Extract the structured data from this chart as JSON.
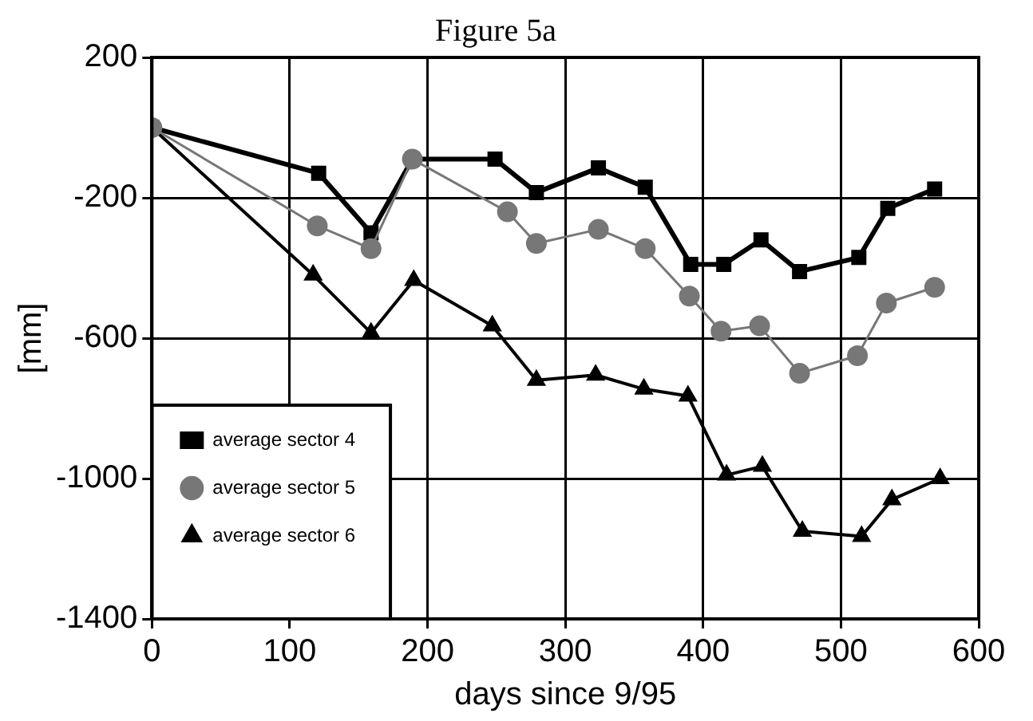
{
  "chart_data": {
    "type": "line",
    "title": "Figure 5a",
    "xlabel": "days since 9/95",
    "ylabel": "[mm]",
    "xlim": [
      0,
      600
    ],
    "xticks": [
      0,
      100,
      200,
      300,
      400,
      500,
      600
    ],
    "ylim": [
      -1400,
      200
    ],
    "yticks": [
      200,
      -200,
      -600,
      -1000,
      -1400
    ],
    "grid": true,
    "legend": "bottom left",
    "series": [
      {
        "name": "average sector 4",
        "color": "#000000",
        "marker": "square",
        "x": [
          0,
          121,
          159,
          189,
          249,
          279,
          324,
          358,
          391,
          415,
          442,
          470,
          513,
          534,
          568
        ],
        "values": [
          0,
          -130,
          -300,
          -90,
          -90,
          -185,
          -115,
          -170,
          -390,
          -390,
          -320,
          -410,
          -370,
          -230,
          -175
        ]
      },
      {
        "name": "average sector 5",
        "color": "#777777",
        "marker": "circle",
        "x": [
          0,
          120,
          159,
          189,
          258,
          279,
          324,
          358,
          390,
          413,
          441,
          470,
          512,
          533,
          568
        ],
        "values": [
          0,
          -280,
          -345,
          -90,
          -240,
          -330,
          -290,
          -345,
          -480,
          -580,
          -565,
          -700,
          -650,
          -500,
          -455
        ]
      },
      {
        "name": "average sector 6",
        "color": "#000000",
        "marker": "triangle",
        "x": [
          0,
          117,
          159,
          190,
          247,
          279,
          322,
          357,
          389,
          417,
          443,
          472,
          515,
          537,
          572
        ],
        "values": [
          0,
          -420,
          -585,
          -435,
          -565,
          -720,
          -705,
          -745,
          -765,
          -990,
          -965,
          -1150,
          -1165,
          -1060,
          -1000
        ]
      }
    ]
  }
}
